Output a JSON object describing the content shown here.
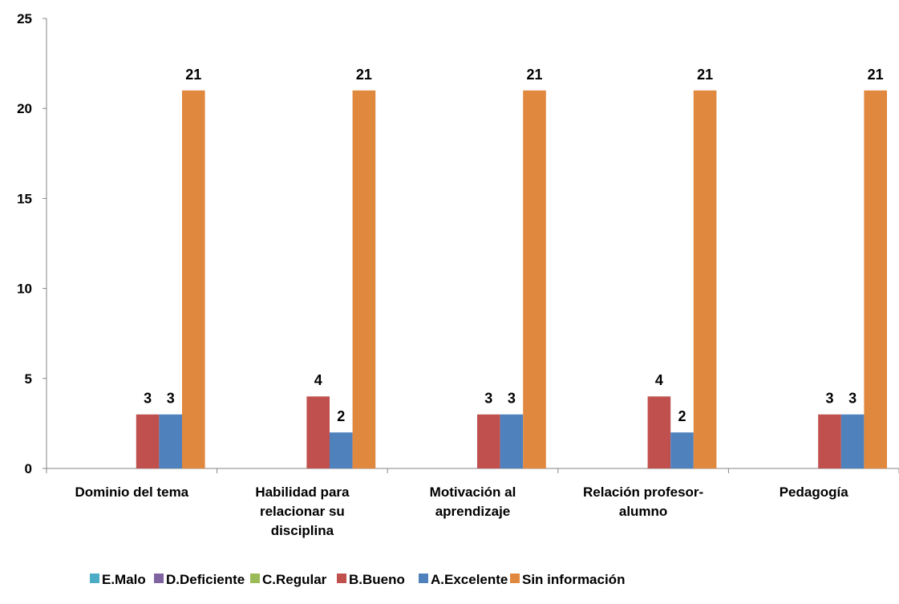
{
  "chart_data": {
    "type": "bar",
    "title": "",
    "xlabel": "",
    "ylabel": "",
    "ylim": [
      0,
      25
    ],
    "yticks": [
      0,
      5,
      10,
      15,
      20,
      25
    ],
    "grid": false,
    "legend_position": "bottom",
    "categories": [
      [
        "Dominio del tema"
      ],
      [
        "Habilidad para",
        "relacionar su",
        "disciplina"
      ],
      [
        "Motivación al",
        "aprendizaje"
      ],
      [
        "Relación profesor-",
        "alumno"
      ],
      [
        "Pedagogía"
      ]
    ],
    "series": [
      {
        "name": "E.Malo",
        "color": "#4BACC6",
        "values": [
          0,
          0,
          0,
          0,
          0
        ]
      },
      {
        "name": "D.Deficiente",
        "color": "#8064A2",
        "values": [
          0,
          0,
          0,
          0,
          0
        ]
      },
      {
        "name": "C.Regular",
        "color": "#9BBB59",
        "values": [
          0,
          0,
          0,
          0,
          0
        ]
      },
      {
        "name": "B.Bueno",
        "color": "#C0504D",
        "values": [
          3,
          4,
          3,
          4,
          3
        ]
      },
      {
        "name": "A.Excelente",
        "color": "#4F81BD",
        "values": [
          3,
          2,
          3,
          2,
          3
        ]
      },
      {
        "name": "Sin información",
        "color": "#E0883E",
        "values": [
          21,
          21,
          21,
          21,
          21
        ]
      }
    ]
  }
}
